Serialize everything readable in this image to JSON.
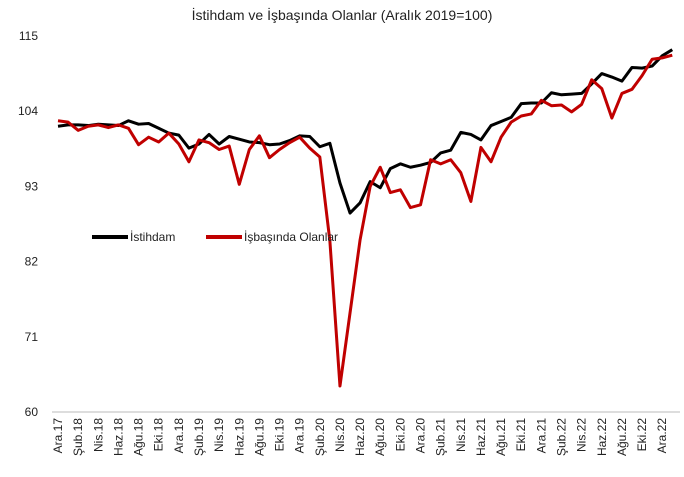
{
  "chart_data": {
    "type": "line",
    "title": "İstihdam ve İşbaşında Olanlar (Aralık 2019=100)",
    "categories": [
      "Ara.17",
      null,
      "Şub.18",
      null,
      "Nis.18",
      null,
      "Haz.18",
      null,
      "Ağu.18",
      null,
      "Eki.18",
      null,
      "Ara.18",
      null,
      "Şub.19",
      null,
      "Nis.19",
      null,
      "Haz.19",
      null,
      "Ağu.19",
      null,
      "Eki.19",
      null,
      "Ara.19",
      null,
      "Şub.20",
      null,
      "Nis.20",
      null,
      "Haz.20",
      null,
      "Ağu.20",
      null,
      "Eki.20",
      null,
      "Ara.20",
      null,
      "Şub.21",
      null,
      "Nis.21",
      null,
      "Haz.21",
      null,
      "Ağu.21",
      null,
      "Eki.21",
      null,
      "Ara.21",
      null,
      "Şub.22",
      null,
      "Nis.22",
      null,
      "Haz.22",
      null,
      "Ağu.22",
      null,
      "Eki.22",
      null,
      "Ara.22",
      null
    ],
    "series": [
      {
        "name": "İstihdam",
        "color": "#000000",
        "values": [
          101.8,
          102,
          102,
          101.9,
          102.1,
          102,
          101.9,
          102.6,
          102.1,
          102.2,
          101.5,
          100.8,
          100.5,
          98.6,
          99.2,
          100.6,
          99.2,
          100.3,
          99.9,
          99.5,
          99.4,
          99.1,
          99.2,
          99.7,
          100.4,
          100.3,
          98.8,
          99.3,
          93.5,
          89.1,
          90.6,
          93.7,
          92.8,
          95.6,
          96.3,
          95.8,
          96.1,
          96.5,
          97.9,
          98.3,
          100.9,
          100.6,
          99.8,
          101.9,
          102.5,
          103.1,
          105.1,
          105.2,
          105.2,
          106.7,
          106.4,
          106.5,
          106.6,
          108,
          109.5,
          109,
          108.4,
          110.4,
          110.3,
          110.6,
          112.1,
          113
        ]
      },
      {
        "name": "İşbaşında Olanlar",
        "color": "#c00000",
        "values": [
          102.6,
          102.4,
          101.2,
          101.8,
          102,
          101.6,
          102,
          101.5,
          99.1,
          100.2,
          99.5,
          100.8,
          99.2,
          96.6,
          99.8,
          99.4,
          98.4,
          98.9,
          93.3,
          98.4,
          100.4,
          97.2,
          98.4,
          99.4,
          100.2,
          98.6,
          97.3,
          85,
          63.8,
          74.5,
          85.2,
          93,
          95.8,
          92.1,
          92.5,
          89.9,
          90.3,
          96.9,
          96.3,
          96.9,
          95,
          90.8,
          98.7,
          96.6,
          100.2,
          102.4,
          103.3,
          103.6,
          105.6,
          104.8,
          104.9,
          103.9,
          105,
          108.6,
          107.3,
          103,
          106.6,
          107.2,
          109.2,
          111.6,
          111.8,
          112.2
        ]
      }
    ],
    "ylim": [
      60,
      115
    ],
    "yticks": [
      60,
      71,
      82,
      93,
      104,
      115
    ],
    "grid": false
  }
}
